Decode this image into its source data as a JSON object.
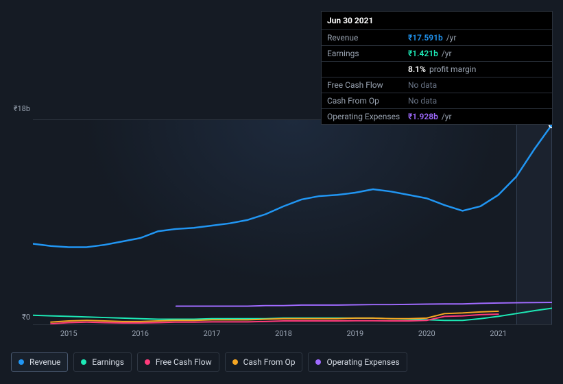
{
  "tooltip": {
    "date": "Jun 30 2021",
    "rows": [
      {
        "key": "revenue",
        "label": "Revenue",
        "amount": "₹17.591b",
        "unit": "/yr",
        "color": "#2196f3"
      },
      {
        "key": "earnings",
        "label": "Earnings",
        "amount": "₹1.421b",
        "unit": "/yr",
        "color": "#1de9b6",
        "sub_pct": "8.1%",
        "sub_label": "profit margin"
      },
      {
        "key": "fcf",
        "label": "Free Cash Flow",
        "nodata": "No data"
      },
      {
        "key": "cfo",
        "label": "Cash From Op",
        "nodata": "No data"
      },
      {
        "key": "opex",
        "label": "Operating Expenses",
        "amount": "₹1.928b",
        "unit": "/yr",
        "color": "#a06bff"
      }
    ]
  },
  "chart": {
    "y_axis": {
      "top_label": "₹18b",
      "bottom_label": "₹0",
      "ymin": 0,
      "ymax": 18
    },
    "x_axis": {
      "min": 2014.5,
      "max": 2021.75,
      "ticks": [
        2015,
        2016,
        2017,
        2018,
        2019,
        2020,
        2021
      ]
    },
    "hover_band": {
      "from": 2021.25,
      "to": 2021.75
    },
    "highlight_point": {
      "x": 2021.75,
      "series": "revenue"
    },
    "series": [
      {
        "key": "revenue",
        "label": "Revenue",
        "color": "#2196f3",
        "width": 2.5,
        "data": [
          [
            2014.5,
            7.1
          ],
          [
            2014.75,
            6.9
          ],
          [
            2015.0,
            6.8
          ],
          [
            2015.25,
            6.8
          ],
          [
            2015.5,
            7.0
          ],
          [
            2015.75,
            7.3
          ],
          [
            2016.0,
            7.6
          ],
          [
            2016.25,
            8.2
          ],
          [
            2016.5,
            8.4
          ],
          [
            2016.75,
            8.5
          ],
          [
            2017.0,
            8.7
          ],
          [
            2017.25,
            8.9
          ],
          [
            2017.5,
            9.2
          ],
          [
            2017.75,
            9.7
          ],
          [
            2018.0,
            10.4
          ],
          [
            2018.25,
            11.0
          ],
          [
            2018.5,
            11.3
          ],
          [
            2018.75,
            11.4
          ],
          [
            2019.0,
            11.6
          ],
          [
            2019.25,
            11.9
          ],
          [
            2019.5,
            11.7
          ],
          [
            2019.75,
            11.4
          ],
          [
            2020.0,
            11.1
          ],
          [
            2020.25,
            10.5
          ],
          [
            2020.5,
            10.0
          ],
          [
            2020.75,
            10.4
          ],
          [
            2021.0,
            11.4
          ],
          [
            2021.25,
            13.0
          ],
          [
            2021.5,
            15.4
          ],
          [
            2021.75,
            17.6
          ]
        ]
      },
      {
        "key": "opex",
        "label": "Operating Expenses",
        "color": "#a06bff",
        "width": 2,
        "data": [
          [
            2016.5,
            1.6
          ],
          [
            2016.75,
            1.6
          ],
          [
            2017.0,
            1.6
          ],
          [
            2017.25,
            1.6
          ],
          [
            2017.5,
            1.6
          ],
          [
            2017.75,
            1.65
          ],
          [
            2018.0,
            1.65
          ],
          [
            2018.25,
            1.7
          ],
          [
            2018.5,
            1.7
          ],
          [
            2018.75,
            1.7
          ],
          [
            2019.0,
            1.72
          ],
          [
            2019.25,
            1.74
          ],
          [
            2019.5,
            1.74
          ],
          [
            2019.75,
            1.76
          ],
          [
            2020.0,
            1.78
          ],
          [
            2020.25,
            1.8
          ],
          [
            2020.5,
            1.8
          ],
          [
            2020.75,
            1.85
          ],
          [
            2021.0,
            1.88
          ],
          [
            2021.25,
            1.9
          ],
          [
            2021.5,
            1.92
          ],
          [
            2021.75,
            1.93
          ]
        ]
      },
      {
        "key": "earnings",
        "label": "Earnings",
        "color": "#1de9b6",
        "width": 2,
        "data": [
          [
            2014.5,
            0.8
          ],
          [
            2014.75,
            0.75
          ],
          [
            2015.0,
            0.7
          ],
          [
            2015.25,
            0.65
          ],
          [
            2015.5,
            0.6
          ],
          [
            2015.75,
            0.55
          ],
          [
            2016.0,
            0.5
          ],
          [
            2016.25,
            0.45
          ],
          [
            2016.5,
            0.45
          ],
          [
            2016.75,
            0.45
          ],
          [
            2017.0,
            0.5
          ],
          [
            2017.25,
            0.5
          ],
          [
            2017.5,
            0.5
          ],
          [
            2017.75,
            0.5
          ],
          [
            2018.0,
            0.55
          ],
          [
            2018.25,
            0.55
          ],
          [
            2018.5,
            0.55
          ],
          [
            2018.75,
            0.55
          ],
          [
            2019.0,
            0.55
          ],
          [
            2019.25,
            0.55
          ],
          [
            2019.5,
            0.5
          ],
          [
            2019.75,
            0.45
          ],
          [
            2020.0,
            0.4
          ],
          [
            2020.25,
            0.35
          ],
          [
            2020.5,
            0.35
          ],
          [
            2020.75,
            0.5
          ],
          [
            2021.0,
            0.7
          ],
          [
            2021.25,
            0.95
          ],
          [
            2021.5,
            1.2
          ],
          [
            2021.75,
            1.42
          ]
        ]
      },
      {
        "key": "cfo",
        "label": "Cash From Op",
        "color": "#f5a623",
        "width": 2,
        "data": [
          [
            2014.75,
            0.2
          ],
          [
            2015.0,
            0.3
          ],
          [
            2015.25,
            0.35
          ],
          [
            2015.5,
            0.3
          ],
          [
            2015.75,
            0.25
          ],
          [
            2016.0,
            0.25
          ],
          [
            2016.25,
            0.3
          ],
          [
            2016.5,
            0.35
          ],
          [
            2016.75,
            0.35
          ],
          [
            2017.0,
            0.4
          ],
          [
            2017.25,
            0.4
          ],
          [
            2017.5,
            0.4
          ],
          [
            2017.75,
            0.45
          ],
          [
            2018.0,
            0.5
          ],
          [
            2018.25,
            0.5
          ],
          [
            2018.5,
            0.5
          ],
          [
            2018.75,
            0.5
          ],
          [
            2019.0,
            0.55
          ],
          [
            2019.25,
            0.55
          ],
          [
            2019.5,
            0.5
          ],
          [
            2019.75,
            0.5
          ],
          [
            2020.0,
            0.55
          ],
          [
            2020.25,
            0.95
          ],
          [
            2020.5,
            1.0
          ],
          [
            2020.75,
            1.1
          ],
          [
            2021.0,
            1.15
          ]
        ]
      },
      {
        "key": "fcf",
        "label": "Free Cash Flow",
        "color": "#ff3b7b",
        "width": 2,
        "data": [
          [
            2014.75,
            0.05
          ],
          [
            2015.0,
            0.15
          ],
          [
            2015.25,
            0.2
          ],
          [
            2015.5,
            0.15
          ],
          [
            2015.75,
            0.12
          ],
          [
            2016.0,
            0.12
          ],
          [
            2016.25,
            0.15
          ],
          [
            2016.5,
            0.2
          ],
          [
            2016.75,
            0.2
          ],
          [
            2017.0,
            0.22
          ],
          [
            2017.25,
            0.22
          ],
          [
            2017.5,
            0.22
          ],
          [
            2017.75,
            0.25
          ],
          [
            2018.0,
            0.3
          ],
          [
            2018.25,
            0.3
          ],
          [
            2018.5,
            0.3
          ],
          [
            2018.75,
            0.3
          ],
          [
            2019.0,
            0.32
          ],
          [
            2019.25,
            0.32
          ],
          [
            2019.5,
            0.3
          ],
          [
            2019.75,
            0.3
          ],
          [
            2020.0,
            0.35
          ],
          [
            2020.25,
            0.7
          ],
          [
            2020.5,
            0.75
          ],
          [
            2020.75,
            0.85
          ],
          [
            2021.0,
            0.9
          ]
        ]
      }
    ],
    "plot_bg": "#151b24",
    "grid_color": "#2a313b"
  },
  "legend": {
    "items": [
      {
        "key": "revenue",
        "label": "Revenue",
        "color": "#2196f3",
        "active": true
      },
      {
        "key": "earnings",
        "label": "Earnings",
        "color": "#1de9b6",
        "active": false
      },
      {
        "key": "fcf",
        "label": "Free Cash Flow",
        "color": "#ff3b7b",
        "active": false
      },
      {
        "key": "cfo",
        "label": "Cash From Op",
        "color": "#f5a623",
        "active": false
      },
      {
        "key": "opex",
        "label": "Operating Expenses",
        "color": "#a06bff",
        "active": false
      }
    ]
  }
}
